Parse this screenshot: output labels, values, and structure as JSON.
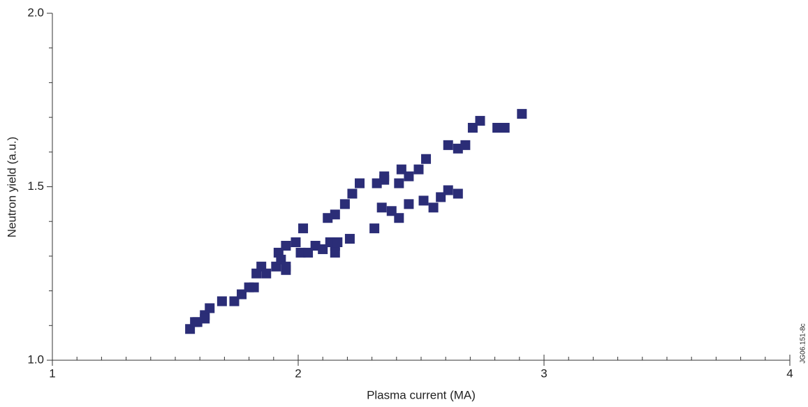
{
  "chart_data": {
    "type": "scatter",
    "x_label": "Plasma current (MA)",
    "y_label": "Neutron yield (a.u.)",
    "side_note": "JG06.151-8c",
    "color": "#2b2d77",
    "xlim": [
      1,
      4
    ],
    "ylim": [
      1,
      2
    ],
    "xticks": [
      1,
      2,
      3,
      4
    ],
    "yticks": [
      {
        "value": 1,
        "label": "1.0"
      },
      {
        "value": 1.5,
        "label": "1.5"
      },
      {
        "value": 2,
        "label": "2.0"
      }
    ],
    "xminorticks": [
      1.1,
      1.2,
      1.3,
      1.4,
      1.5,
      1.6,
      1.7,
      1.8,
      1.9,
      2.1,
      2.2,
      2.3,
      2.4,
      2.5,
      2.6,
      2.7,
      2.8,
      2.9,
      3.1,
      3.2,
      3.3,
      3.4,
      3.5,
      3.6,
      3.7,
      3.8,
      3.9
    ],
    "yminorticks": [
      1.1,
      1.2,
      1.3,
      1.4,
      1.6,
      1.7,
      1.8,
      1.9
    ],
    "x": [
      1.56,
      1.58,
      1.59,
      1.62,
      1.62,
      1.64,
      1.69,
      1.74,
      1.77,
      1.8,
      1.82,
      1.83,
      1.85,
      1.87,
      1.91,
      1.92,
      1.93,
      1.95,
      1.95,
      1.95,
      1.99,
      2.01,
      2.02,
      2.04,
      2.07,
      2.1,
      2.12,
      2.13,
      2.15,
      2.15,
      2.15,
      2.16,
      2.19,
      2.21,
      2.22,
      2.25,
      2.31,
      2.32,
      2.35,
      2.35,
      2.34,
      2.38,
      2.41,
      2.41,
      2.42,
      2.45,
      2.45,
      2.49,
      2.51,
      2.52,
      2.55,
      2.58,
      2.61,
      2.61,
      2.65,
      2.65,
      2.68,
      2.71,
      2.74,
      2.81,
      2.84,
      2.91
    ],
    "values": [
      1.09,
      1.11,
      1.11,
      1.13,
      1.12,
      1.15,
      1.17,
      1.17,
      1.19,
      1.21,
      1.21,
      1.25,
      1.27,
      1.25,
      1.27,
      1.31,
      1.29,
      1.26,
      1.33,
      1.27,
      1.34,
      1.31,
      1.38,
      1.31,
      1.33,
      1.32,
      1.41,
      1.34,
      1.33,
      1.42,
      1.31,
      1.34,
      1.45,
      1.35,
      1.48,
      1.51,
      1.38,
      1.51,
      1.52,
      1.53,
      1.44,
      1.43,
      1.51,
      1.41,
      1.55,
      1.45,
      1.53,
      1.55,
      1.46,
      1.58,
      1.44,
      1.47,
      1.62,
      1.49,
      1.61,
      1.48,
      1.62,
      1.67,
      1.69,
      1.67,
      1.67,
      1.71
    ]
  }
}
